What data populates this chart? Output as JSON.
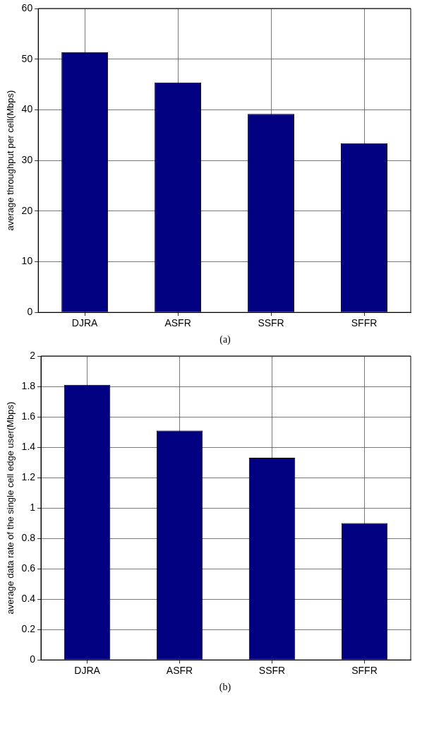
{
  "chart_data": [
    {
      "type": "bar",
      "categories": [
        "DJRA",
        "ASFR",
        "SSFR",
        "SFFR"
      ],
      "values": [
        51.4,
        45.4,
        39.2,
        33.4
      ],
      "color": "#000080",
      "ylabel": "average throughput per cell(Mbps)",
      "ylim": [
        0,
        60
      ],
      "yticks": [
        0,
        10,
        20,
        30,
        40,
        50,
        60
      ],
      "grid": true,
      "legend": false,
      "annotations": [
        "(a)"
      ]
    },
    {
      "type": "bar",
      "categories": [
        "DJRA",
        "ASFR",
        "SSFR",
        "SFFR"
      ],
      "values": [
        1.81,
        1.51,
        1.33,
        0.9
      ],
      "color": "#000080",
      "ylabel": "average data rate of the single cell edge user(Mbps)",
      "ylim": [
        0,
        2
      ],
      "yticks": [
        0,
        0.2,
        0.4,
        0.6,
        0.8,
        1,
        1.2,
        1.4,
        1.6,
        1.8,
        2
      ],
      "grid": true,
      "legend": false,
      "annotations": [
        "(b)"
      ]
    }
  ]
}
